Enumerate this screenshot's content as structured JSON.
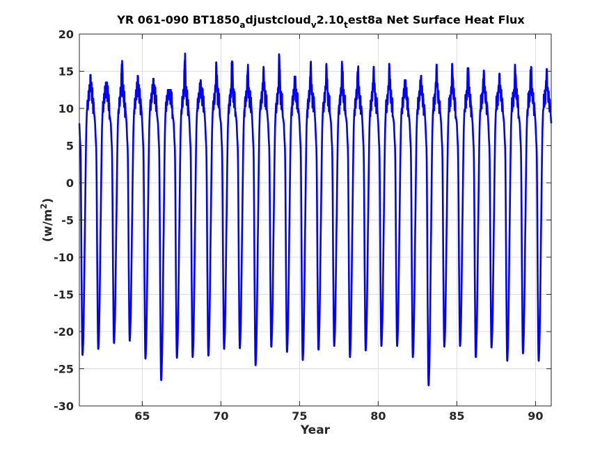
{
  "chart_data": {
    "type": "line",
    "title": {
      "parts": [
        {
          "text": "YR 061-090 BT1850",
          "shift": "base"
        },
        {
          "text": "a",
          "shift": "sub"
        },
        {
          "text": "djustcloud",
          "shift": "base"
        },
        {
          "text": "v",
          "shift": "sub"
        },
        {
          "text": "2.10",
          "shift": "base"
        },
        {
          "text": "t",
          "shift": "sub"
        },
        {
          "text": "est8a Net Surface Heat Flux",
          "shift": "base"
        }
      ]
    },
    "xlabel": "Year",
    "ylabel": {
      "base": "(w/m",
      "sup": "2",
      "close": ")"
    },
    "xlim": [
      61,
      91
    ],
    "ylim": [
      -30,
      20
    ],
    "xticks": [
      65,
      70,
      75,
      80,
      85,
      90
    ],
    "yticks": [
      -30,
      -25,
      -20,
      -15,
      -10,
      -5,
      0,
      5,
      10,
      15,
      20
    ],
    "grid": true,
    "line_color": "#0000ff",
    "series": [
      {
        "seasonal_cycle": {
          "years": [
            61,
            62,
            63,
            64,
            65,
            66,
            67,
            68,
            69,
            70,
            71,
            72,
            73,
            74,
            75,
            76,
            77,
            78,
            79,
            80,
            81,
            82,
            83,
            84,
            85,
            86,
            87,
            88,
            89,
            90
          ],
          "peak_max": [
            14.5,
            13.5,
            16.4,
            14.4,
            14.0,
            12.5,
            17.4,
            13.8,
            16.2,
            16.8,
            15.9,
            15.6,
            17.3,
            14.3,
            16.3,
            16.0,
            16.3,
            15.7,
            15.6,
            16.0,
            13.8,
            14.4,
            15.9,
            16.0,
            16.0,
            15.1,
            14.7,
            15.9,
            15.8,
            15.3
          ],
          "trough_min": [
            -23.2,
            -22.4,
            -21.6,
            -21.3,
            -23.7,
            -26.6,
            -23.6,
            -23.5,
            -23.3,
            -22.4,
            -22.3,
            -24.6,
            -22.1,
            -22.8,
            -23.9,
            -22.5,
            -22.0,
            -23.5,
            -22.6,
            -22.0,
            -22.0,
            -23.5,
            -27.3,
            -22.1,
            -22.0,
            -23.5,
            -22.2,
            -24.0,
            -23.0,
            -24.0
          ]
        }
      }
    ]
  }
}
